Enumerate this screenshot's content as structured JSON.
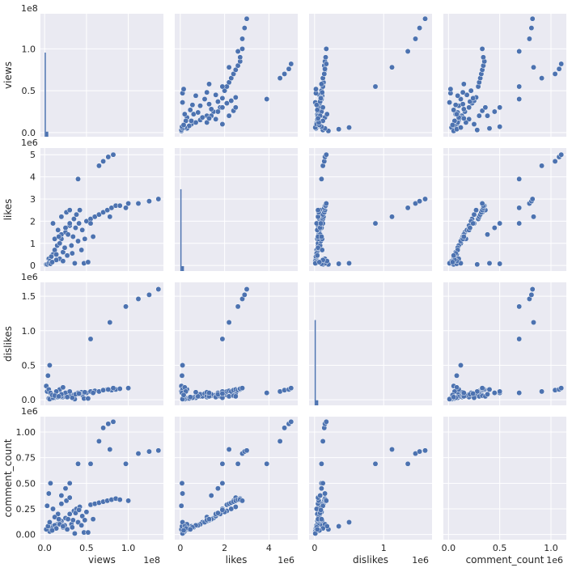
{
  "chart_data": {
    "type": "scatter",
    "title": "",
    "variables": [
      "views",
      "likes",
      "dislikes",
      "comment_count"
    ],
    "axes": {
      "views": {
        "label": "views",
        "offset": "1e8",
        "ticks": [
          0,
          0.5,
          1.0
        ],
        "tick_labels": [
          "0.0",
          "0.5",
          "1.0"
        ],
        "range": [
          -0.05,
          1.42
        ]
      },
      "likes": {
        "label": "likes",
        "offset": "1e6",
        "ticks": [
          0,
          1,
          2,
          3,
          4,
          5
        ],
        "tick_labels_x": [
          "0",
          "2",
          "4"
        ],
        "ticks_x": [
          0,
          2,
          4
        ],
        "tick_labels_y": [
          "0",
          "1",
          "2",
          "3",
          "4",
          "5"
        ],
        "range": [
          -0.25,
          5.3
        ]
      },
      "dislikes": {
        "label": "dislikes",
        "offset": "1e6",
        "ticks": [
          0,
          0.5,
          1.0,
          1.5
        ],
        "tick_labels_x": [
          "0",
          "1"
        ],
        "ticks_x": [
          0,
          1
        ],
        "tick_labels_y": [
          "0.0",
          "0.5",
          "1.0",
          "1.5"
        ],
        "range": [
          -0.08,
          1.7
        ]
      },
      "comment_count": {
        "label": "comment_count",
        "offset": "1e6",
        "ticks": [
          0,
          0.25,
          0.5,
          0.75,
          1.0
        ],
        "tick_labels_x": [
          "0.0",
          "0.5",
          "1.0"
        ],
        "ticks_x": [
          0,
          0.5,
          1.0
        ],
        "tick_labels_y": [
          "0.00",
          "0.25",
          "0.50",
          "0.75",
          "1.00"
        ],
        "range": [
          -0.05,
          1.15
        ]
      }
    },
    "points": [
      [
        0.05,
        0.3,
        0.02,
        0.05
      ],
      [
        0.1,
        0.5,
        0.03,
        0.08
      ],
      [
        0.15,
        0.9,
        0.05,
        0.1
      ],
      [
        0.2,
        1.2,
        0.04,
        0.13
      ],
      [
        0.25,
        1.5,
        0.06,
        0.16
      ],
      [
        0.3,
        1.8,
        0.05,
        0.2
      ],
      [
        0.35,
        2.1,
        0.07,
        0.23
      ],
      [
        0.12,
        0.7,
        0.03,
        0.09
      ],
      [
        0.08,
        0.4,
        0.02,
        0.06
      ],
      [
        0.18,
        1.0,
        0.05,
        0.12
      ],
      [
        0.22,
        0.6,
        0.04,
        0.07
      ],
      [
        0.28,
        1.4,
        0.06,
        0.15
      ],
      [
        0.32,
        0.9,
        0.08,
        0.1
      ],
      [
        0.4,
        1.1,
        0.09,
        0.12
      ],
      [
        0.45,
        1.6,
        0.07,
        0.18
      ],
      [
        0.5,
        2.0,
        0.1,
        0.22
      ],
      [
        0.06,
        0.2,
        0.01,
        0.03
      ],
      [
        0.14,
        0.5,
        0.04,
        0.06
      ],
      [
        0.24,
        0.8,
        0.05,
        0.09
      ],
      [
        0.34,
        1.3,
        0.06,
        0.14
      ],
      [
        0.44,
        0.7,
        0.11,
        0.09
      ],
      [
        0.38,
        2.3,
        0.08,
        0.25
      ],
      [
        0.42,
        2.5,
        0.09,
        0.27
      ],
      [
        0.16,
        1.6,
        0.04,
        0.2
      ],
      [
        0.2,
        2.2,
        0.05,
        0.3
      ],
      [
        0.26,
        2.4,
        0.06,
        0.33
      ],
      [
        0.3,
        2.5,
        0.05,
        0.36
      ],
      [
        0.1,
        1.9,
        0.03,
        0.25
      ],
      [
        0.55,
        2.1,
        0.12,
        0.29
      ],
      [
        0.6,
        2.2,
        0.13,
        0.3
      ],
      [
        0.65,
        2.3,
        0.12,
        0.31
      ],
      [
        0.7,
        2.4,
        0.14,
        0.32
      ],
      [
        0.75,
        2.5,
        0.15,
        0.33
      ],
      [
        0.8,
        2.6,
        0.14,
        0.34
      ],
      [
        0.85,
        2.7,
        0.15,
        0.35
      ],
      [
        0.9,
        2.7,
        0.16,
        0.34
      ],
      [
        1.0,
        2.8,
        0.17,
        0.33
      ],
      [
        0.47,
        0.1,
        0.02,
        0.02
      ],
      [
        0.52,
        0.15,
        0.02,
        0.02
      ],
      [
        0.36,
        0.1,
        0.01,
        0.01
      ],
      [
        0.02,
        0.05,
        0.2,
        0.05
      ],
      [
        0.04,
        0.08,
        0.35,
        0.08
      ],
      [
        0.06,
        0.1,
        0.5,
        0.12
      ],
      [
        0.03,
        0.05,
        0.12,
        0.28
      ],
      [
        0.05,
        0.1,
        0.15,
        0.4
      ],
      [
        0.07,
        0.08,
        0.1,
        0.5
      ],
      [
        0.55,
        1.9,
        0.88,
        0.69
      ],
      [
        0.78,
        2.2,
        1.12,
        0.83
      ],
      [
        0.97,
        2.6,
        1.35,
        0.69
      ],
      [
        1.12,
        2.8,
        1.46,
        0.79
      ],
      [
        1.25,
        2.9,
        1.52,
        0.81
      ],
      [
        1.36,
        3.0,
        1.6,
        0.82
      ],
      [
        0.4,
        3.9,
        0.1,
        0.69
      ],
      [
        0.65,
        4.5,
        0.12,
        0.91
      ],
      [
        0.7,
        4.7,
        0.14,
        1.04
      ],
      [
        0.76,
        4.9,
        0.15,
        1.08
      ],
      [
        0.82,
        5.0,
        0.17,
        1.1
      ],
      [
        0.25,
        1.7,
        0.1,
        0.45
      ],
      [
        0.3,
        1.9,
        0.12,
        0.5
      ],
      [
        0.2,
        1.4,
        0.08,
        0.38
      ],
      [
        0.18,
        0.3,
        0.15,
        0.1
      ],
      [
        0.22,
        0.2,
        0.18,
        0.08
      ],
      [
        0.14,
        0.25,
        0.12,
        0.06
      ],
      [
        0.09,
        0.15,
        0.07,
        0.04
      ],
      [
        0.33,
        0.55,
        0.03,
        0.07
      ],
      [
        0.27,
        0.45,
        0.04,
        0.05
      ],
      [
        0.12,
        1.2,
        0.06,
        0.17
      ],
      [
        0.17,
        1.3,
        0.05,
        0.15
      ],
      [
        0.37,
        1.7,
        0.08,
        0.21
      ],
      [
        0.41,
        1.9,
        0.09,
        0.24
      ],
      [
        0.48,
        1.2,
        0.11,
        0.14
      ],
      [
        0.58,
        1.3,
        0.1,
        0.15
      ]
    ]
  }
}
